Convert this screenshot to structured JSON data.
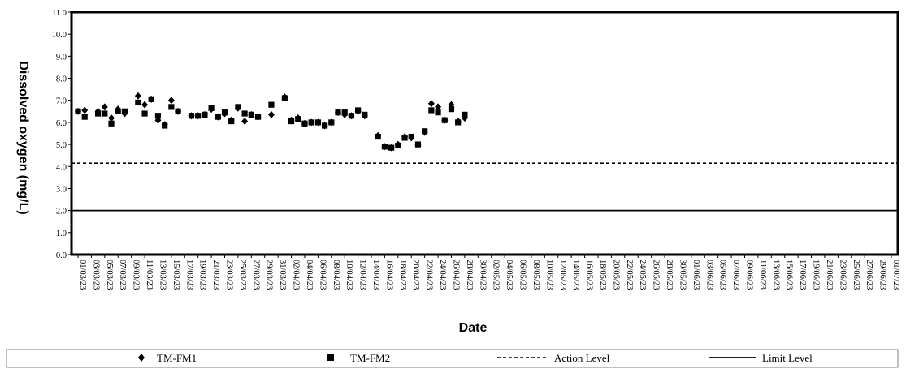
{
  "chart_data": {
    "type": "scatter",
    "title": "",
    "xlabel": "Date",
    "ylabel": "Dissolved oxygen (mg/L)",
    "ylim": [
      0,
      11
    ],
    "yticks": [
      "0.0",
      "1.0",
      "2.0",
      "3.0",
      "4.0",
      "5.0",
      "6.0",
      "7.0",
      "8.0",
      "9.0",
      "10.0",
      "11.0"
    ],
    "x_tick_labels": [
      "01/03/23",
      "03/03/23",
      "05/03/23",
      "07/03/23",
      "09/03/23",
      "11/03/23",
      "13/03/23",
      "15/03/23",
      "17/03/23",
      "19/03/23",
      "21/03/23",
      "23/03/23",
      "25/03/23",
      "27/03/23",
      "29/03/23",
      "31/03/23",
      "02/04/23",
      "04/04/23",
      "06/04/23",
      "08/04/23",
      "10/04/23",
      "12/04/23",
      "14/04/23",
      "16/04/23",
      "18/04/23",
      "20/04/23",
      "22/04/23",
      "24/04/23",
      "26/04/23",
      "28/04/23",
      "30/04/23",
      "02/05/23",
      "04/05/23",
      "06/05/23",
      "08/05/23",
      "10/05/23",
      "12/05/23",
      "14/05/23",
      "16/05/23",
      "18/05/23",
      "20/05/23",
      "22/05/23",
      "24/05/23",
      "26/05/23",
      "28/05/23",
      "30/05/23",
      "01/06/23",
      "03/06/23",
      "05/06/23",
      "07/06/23",
      "09/06/23",
      "11/06/23",
      "13/06/23",
      "15/06/23",
      "17/06/23",
      "19/06/23",
      "21/06/23",
      "23/06/23",
      "25/06/23",
      "27/06/23",
      "29/06/23",
      "01/07/23"
    ],
    "series": [
      {
        "name": "TM-FM1",
        "marker": "diamond",
        "points": [
          [
            "01/03/23",
            6.5
          ],
          [
            "02/03/23",
            6.55
          ],
          [
            "04/03/23",
            6.5
          ],
          [
            "05/03/23",
            6.7
          ],
          [
            "06/03/23",
            6.2
          ],
          [
            "07/03/23",
            6.6
          ],
          [
            "08/03/23",
            6.4
          ],
          [
            "10/03/23",
            7.2
          ],
          [
            "11/03/23",
            6.8
          ],
          [
            "12/03/23",
            7.05
          ],
          [
            "13/03/23",
            6.1
          ],
          [
            "14/03/23",
            5.9
          ],
          [
            "15/03/23",
            7.0
          ],
          [
            "16/03/23",
            6.5
          ],
          [
            "18/03/23",
            6.3
          ],
          [
            "19/03/23",
            6.3
          ],
          [
            "20/03/23",
            6.35
          ],
          [
            "21/03/23",
            6.6
          ],
          [
            "22/03/23",
            6.25
          ],
          [
            "23/03/23",
            6.4
          ],
          [
            "24/03/23",
            6.1
          ],
          [
            "25/03/23",
            6.65
          ],
          [
            "26/03/23",
            6.05
          ],
          [
            "27/03/23",
            6.35
          ],
          [
            "28/03/23",
            6.25
          ],
          [
            "30/03/23",
            6.35
          ],
          [
            "01/04/23",
            7.15
          ],
          [
            "02/04/23",
            6.1
          ],
          [
            "03/04/23",
            6.2
          ],
          [
            "04/04/23",
            5.95
          ],
          [
            "05/04/23",
            6.0
          ],
          [
            "06/04/23",
            6.0
          ],
          [
            "07/04/23",
            5.85
          ],
          [
            "08/04/23",
            6.0
          ],
          [
            "09/04/23",
            6.45
          ],
          [
            "10/04/23",
            6.35
          ],
          [
            "11/04/23",
            6.3
          ],
          [
            "12/04/23",
            6.5
          ],
          [
            "13/04/23",
            6.3
          ],
          [
            "15/04/23",
            5.4
          ],
          [
            "16/04/23",
            4.9
          ],
          [
            "17/04/23",
            4.85
          ],
          [
            "18/04/23",
            5.0
          ],
          [
            "19/04/23",
            5.35
          ],
          [
            "20/04/23",
            5.3
          ],
          [
            "21/04/23",
            5.0
          ],
          [
            "22/04/23",
            5.55
          ],
          [
            "23/04/23",
            6.85
          ],
          [
            "24/04/23",
            6.7
          ],
          [
            "25/04/23",
            6.1
          ],
          [
            "26/04/23",
            6.8
          ],
          [
            "27/04/23",
            6.05
          ],
          [
            "28/04/23",
            6.2
          ]
        ]
      },
      {
        "name": "TM-FM2",
        "marker": "square",
        "points": [
          [
            "01/03/23",
            6.5
          ],
          [
            "02/03/23",
            6.25
          ],
          [
            "04/03/23",
            6.4
          ],
          [
            "05/03/23",
            6.4
          ],
          [
            "06/03/23",
            5.95
          ],
          [
            "07/03/23",
            6.5
          ],
          [
            "08/03/23",
            6.5
          ],
          [
            "10/03/23",
            6.9
          ],
          [
            "11/03/23",
            6.4
          ],
          [
            "12/03/23",
            7.05
          ],
          [
            "13/03/23",
            6.3
          ],
          [
            "14/03/23",
            5.85
          ],
          [
            "15/03/23",
            6.7
          ],
          [
            "16/03/23",
            6.5
          ],
          [
            "18/03/23",
            6.3
          ],
          [
            "19/03/23",
            6.3
          ],
          [
            "20/03/23",
            6.35
          ],
          [
            "21/03/23",
            6.65
          ],
          [
            "22/03/23",
            6.25
          ],
          [
            "23/03/23",
            6.45
          ],
          [
            "24/03/23",
            6.05
          ],
          [
            "25/03/23",
            6.7
          ],
          [
            "26/03/23",
            6.4
          ],
          [
            "27/03/23",
            6.35
          ],
          [
            "28/03/23",
            6.25
          ],
          [
            "30/03/23",
            6.8
          ],
          [
            "01/04/23",
            7.1
          ],
          [
            "02/04/23",
            6.05
          ],
          [
            "03/04/23",
            6.15
          ],
          [
            "04/04/23",
            5.95
          ],
          [
            "05/04/23",
            6.0
          ],
          [
            "06/04/23",
            6.0
          ],
          [
            "07/04/23",
            5.85
          ],
          [
            "08/04/23",
            6.0
          ],
          [
            "09/04/23",
            6.45
          ],
          [
            "10/04/23",
            6.45
          ],
          [
            "11/04/23",
            6.3
          ],
          [
            "12/04/23",
            6.55
          ],
          [
            "13/04/23",
            6.35
          ],
          [
            "15/04/23",
            5.35
          ],
          [
            "16/04/23",
            4.9
          ],
          [
            "17/04/23",
            4.85
          ],
          [
            "18/04/23",
            4.95
          ],
          [
            "19/04/23",
            5.3
          ],
          [
            "20/04/23",
            5.35
          ],
          [
            "21/04/23",
            5.0
          ],
          [
            "22/04/23",
            5.6
          ],
          [
            "23/04/23",
            6.55
          ],
          [
            "24/04/23",
            6.45
          ],
          [
            "25/04/23",
            6.1
          ],
          [
            "26/04/23",
            6.6
          ],
          [
            "27/04/23",
            6.0
          ],
          [
            "28/04/23",
            6.35
          ]
        ]
      }
    ],
    "reference_lines": [
      {
        "name": "Action Level",
        "value": 4.15,
        "style": "dashed"
      },
      {
        "name": "Limit Level",
        "value": 2.0,
        "style": "solid"
      }
    ],
    "grid": false,
    "legend_position": "bottom",
    "legend": [
      "TM-FM1",
      "TM-FM2",
      "Action Level",
      "Limit Level"
    ],
    "colors": {
      "markers": "#000000",
      "lines": "#000000",
      "frame": "#000000"
    }
  }
}
